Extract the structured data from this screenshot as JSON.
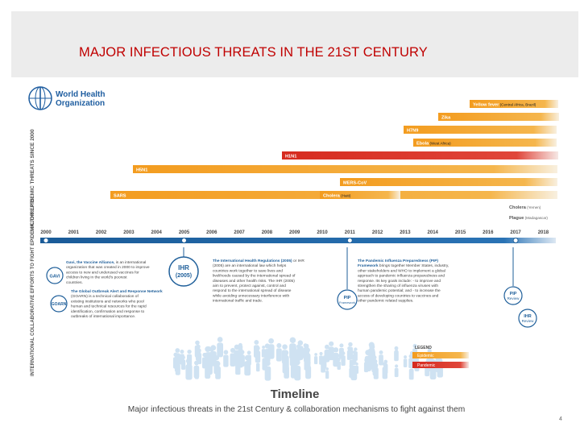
{
  "slide": {
    "title": "MAJOR INFECTIOUS THREATS IN THE 21ST CENTURY",
    "page_number": "4"
  },
  "infographic": {
    "logo_line1": "World Health",
    "logo_line2": "Organization",
    "vertical_label_top": "MAJOR EPIDEMIC THREATS SINCE 2000",
    "vertical_label_bottom": "INTERNATIONAL COLLABORATIVE EFFORTS TO FIGHT EPIDEMIC THREATS",
    "threats": [
      {
        "label": "Yellow fever",
        "note": "(Central Africa, Brazil)",
        "type": "epidemic"
      },
      {
        "label": "Zika",
        "note": "",
        "type": "epidemic"
      },
      {
        "label": "H7N9",
        "note": "",
        "type": "epidemic"
      },
      {
        "label": "Ebola",
        "note": "(West Africa)",
        "type": "epidemic"
      },
      {
        "label": "H1N1",
        "note": "",
        "type": "pandemic"
      },
      {
        "label": "H5N1",
        "note": "",
        "type": "epidemic"
      },
      {
        "label": "MERS-CoV",
        "note": "",
        "type": "epidemic"
      },
      {
        "label": "SARS",
        "note": "",
        "type": "epidemic"
      },
      {
        "label": "Cholera",
        "note": "(Haiti)",
        "type": "epidemic"
      },
      {
        "label": "Cholera",
        "note": "(Yemen)",
        "type": "epidemic"
      },
      {
        "label": "Plague",
        "note": "(Madagascar)",
        "type": "epidemic"
      }
    ],
    "years": [
      "2000",
      "2001",
      "2002",
      "2003",
      "2004",
      "2005",
      "2006",
      "2007",
      "2008",
      "2009",
      "2010",
      "2011",
      "2012",
      "2013",
      "2014",
      "2015",
      "2016",
      "2017",
      "2018"
    ],
    "gavi_title": "Gavi, the Vaccine Alliance,",
    "gavi_text": "is an international organization that was created in 2000 to improve access to new and underused vaccines for children living in the world's poorest countries.",
    "goarn_title": "The Global Outbreak Alert and Response Network",
    "goarn_text": "(GOARN) is a technical collaboration of existing institutions and networks who pool human and technical resources for the rapid identification, confirmation and response to outbreaks of international importance.",
    "ihr_title": "The International Health Regulations (2005)",
    "ihr_text": "or IHR (2005) are an international law which helps countries work together to save lives and livelihoods caused by the international spread of diseases and other health risks. The IHR (2005) aim to prevent, protect against, control and respond to the international spread of disease while avoiding unnecessary interference with international traffic and trade.",
    "pip_title": "The Pandemic Influenza Preparedness (PIP) Framework",
    "pip_text": "brings together Member States, industry, other stakeholders and WHO to implement a global approach to pandemic influenza preparedness and response. Its key goals include: - to improve and strengthen the sharing of influenza viruses with human pandemic potential; and - to increase the access of developing countries to vaccines and other pandemic related supplies.",
    "badge_gavi": "GAVI",
    "badge_goarn": "GOARN",
    "badge_ihr_line1": "IHR",
    "badge_ihr_line2": "(2005)",
    "badge_pip_line1": "PIP",
    "badge_pip_line2": "Framework",
    "badge_pip_review_line1": "PIP",
    "badge_pip_review_line2": "Review",
    "badge_ihr_review_line1": "IHR",
    "badge_ihr_review_line2": "Review",
    "legend_title": "LEGEND",
    "legend_epidemic": "Epidemic",
    "legend_pandemic": "Pandemic",
    "footer_title": "Timeline",
    "footer_subtitle": "Major infectious threats in the 21st Century & collaboration mechanisms to fight against them",
    "colors": {
      "epidemic": "#f2a030",
      "pandemic": "#d62b1f",
      "timeline_blue": "#1f5f9a",
      "who_blue": "#1f5ea0"
    }
  }
}
